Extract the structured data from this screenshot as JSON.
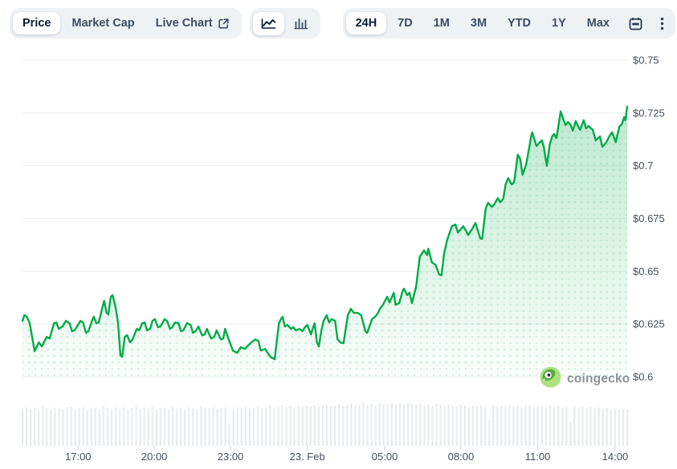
{
  "toolbar": {
    "left_tabs": [
      {
        "label": "Price",
        "selected": true
      },
      {
        "label": "Market Cap",
        "selected": false
      },
      {
        "label": "Live Chart",
        "selected": false,
        "external_icon": "external-link"
      }
    ],
    "chart_type_buttons": [
      {
        "icon": "line-chart",
        "selected": true
      },
      {
        "icon": "bar-chart",
        "selected": false
      }
    ],
    "range_buttons": [
      {
        "label": "24H",
        "selected": true
      },
      {
        "label": "7D",
        "selected": false
      },
      {
        "label": "1M",
        "selected": false
      },
      {
        "label": "3M",
        "selected": false
      },
      {
        "label": "YTD",
        "selected": false
      },
      {
        "label": "1Y",
        "selected": false
      },
      {
        "label": "Max",
        "selected": false
      }
    ],
    "calendar_icon": "calendar",
    "more_icon": "kebab-menu"
  },
  "watermark": {
    "label": "coingecko"
  },
  "chart_data": {
    "type": "area",
    "title": "",
    "currency": "USD",
    "ylim": [
      0.6,
      0.75
    ],
    "grid": "horizontal",
    "yticks": [
      {
        "label": "$0.75",
        "value": 0.75
      },
      {
        "label": "$0.725",
        "value": 0.725
      },
      {
        "label": "$0.7",
        "value": 0.7
      },
      {
        "label": "$0.675",
        "value": 0.675
      },
      {
        "label": "$0.65",
        "value": 0.65
      },
      {
        "label": "$0.625",
        "value": 0.625
      },
      {
        "label": "$0.6",
        "value": 0.6
      }
    ],
    "xticks": [
      {
        "label": "17:00",
        "f": 0.092
      },
      {
        "label": "20:00",
        "f": 0.218
      },
      {
        "label": "23:00",
        "f": 0.344
      },
      {
        "label": "23. Feb",
        "f": 0.471
      },
      {
        "label": "05:00",
        "f": 0.599
      },
      {
        "label": "08:00",
        "f": 0.725
      },
      {
        "label": "11:00",
        "f": 0.852
      },
      {
        "label": "14:00",
        "f": 0.98
      }
    ],
    "colors": {
      "line": "#00ab47",
      "fill_top": "rgba(0,171,71,0.26)",
      "fill_bottom": "rgba(0,171,71,0.02)",
      "dot": "rgba(0,150,62,0.13)",
      "grid": "#eef0f3",
      "volume_bar": "#e8ebee",
      "tick": "#ccd2d9",
      "axis_text": "#46505e"
    },
    "series": [
      {
        "name": "Price",
        "points": [
          [
            0,
            0.6265
          ],
          [
            0.003,
            0.6292
          ],
          [
            0.007,
            0.6285
          ],
          [
            0.012,
            0.6254
          ],
          [
            0.02,
            0.6121
          ],
          [
            0.027,
            0.6163
          ],
          [
            0.032,
            0.6144
          ],
          [
            0.04,
            0.6189
          ],
          [
            0.045,
            0.6181
          ],
          [
            0.052,
            0.6254
          ],
          [
            0.056,
            0.6257
          ],
          [
            0.06,
            0.6227
          ],
          [
            0.066,
            0.6238
          ],
          [
            0.072,
            0.6265
          ],
          [
            0.078,
            0.6254
          ],
          [
            0.082,
            0.6216
          ],
          [
            0.086,
            0.622
          ],
          [
            0.096,
            0.6265
          ],
          [
            0.1,
            0.6257
          ],
          [
            0.105,
            0.6208
          ],
          [
            0.109,
            0.6216
          ],
          [
            0.116,
            0.6273
          ],
          [
            0.118,
            0.6285
          ],
          [
            0.122,
            0.6254
          ],
          [
            0.126,
            0.6257
          ],
          [
            0.131,
            0.6314
          ],
          [
            0.135,
            0.636
          ],
          [
            0.139,
            0.6303
          ],
          [
            0.142,
            0.6295
          ],
          [
            0.146,
            0.6379
          ],
          [
            0.149,
            0.6387
          ],
          [
            0.153,
            0.6341
          ],
          [
            0.155,
            0.6311
          ],
          [
            0.158,
            0.6254
          ],
          [
            0.162,
            0.6102
          ],
          [
            0.165,
            0.6094
          ],
          [
            0.169,
            0.6189
          ],
          [
            0.173,
            0.6197
          ],
          [
            0.178,
            0.6163
          ],
          [
            0.182,
            0.6177
          ],
          [
            0.189,
            0.6227
          ],
          [
            0.193,
            0.622
          ],
          [
            0.198,
            0.6254
          ],
          [
            0.202,
            0.6257
          ],
          [
            0.206,
            0.622
          ],
          [
            0.211,
            0.6227
          ],
          [
            0.215,
            0.6265
          ],
          [
            0.219,
            0.6273
          ],
          [
            0.224,
            0.6235
          ],
          [
            0.228,
            0.6238
          ],
          [
            0.235,
            0.6273
          ],
          [
            0.239,
            0.6265
          ],
          [
            0.244,
            0.6227
          ],
          [
            0.248,
            0.6235
          ],
          [
            0.252,
            0.6257
          ],
          [
            0.258,
            0.6254
          ],
          [
            0.262,
            0.6216
          ],
          [
            0.266,
            0.622
          ],
          [
            0.272,
            0.6254
          ],
          [
            0.278,
            0.6246
          ],
          [
            0.282,
            0.6208
          ],
          [
            0.286,
            0.6216
          ],
          [
            0.291,
            0.6238
          ],
          [
            0.297,
            0.6197
          ],
          [
            0.301,
            0.62
          ],
          [
            0.305,
            0.6227
          ],
          [
            0.312,
            0.6181
          ],
          [
            0.317,
            0.6189
          ],
          [
            0.321,
            0.622
          ],
          [
            0.328,
            0.6177
          ],
          [
            0.332,
            0.6181
          ],
          [
            0.335,
            0.6227
          ],
          [
            0.341,
            0.6177
          ],
          [
            0.348,
            0.6124
          ],
          [
            0.355,
            0.6113
          ],
          [
            0.361,
            0.614
          ],
          [
            0.368,
            0.6132
          ],
          [
            0.374,
            0.6151
          ],
          [
            0.378,
            0.6162
          ],
          [
            0.385,
            0.6177
          ],
          [
            0.39,
            0.617
          ],
          [
            0.394,
            0.6124
          ],
          [
            0.401,
            0.6132
          ],
          [
            0.41,
            0.6094
          ],
          [
            0.417,
            0.6083
          ],
          [
            0.424,
            0.6254
          ],
          [
            0.428,
            0.6276
          ],
          [
            0.43,
            0.6284
          ],
          [
            0.434,
            0.6238
          ],
          [
            0.438,
            0.6246
          ],
          [
            0.444,
            0.6227
          ],
          [
            0.448,
            0.6235
          ],
          [
            0.452,
            0.622
          ],
          [
            0.458,
            0.6227
          ],
          [
            0.463,
            0.6216
          ],
          [
            0.467,
            0.6235
          ],
          [
            0.471,
            0.6246
          ],
          [
            0.477,
            0.62
          ],
          [
            0.481,
            0.6238
          ],
          [
            0.483,
            0.6254
          ],
          [
            0.487,
            0.6162
          ],
          [
            0.49,
            0.6143
          ],
          [
            0.494,
            0.6216
          ],
          [
            0.498,
            0.6265
          ],
          [
            0.503,
            0.6292
          ],
          [
            0.507,
            0.6257
          ],
          [
            0.511,
            0.6273
          ],
          [
            0.517,
            0.6265
          ],
          [
            0.521,
            0.6177
          ],
          [
            0.526,
            0.6162
          ],
          [
            0.531,
            0.6159
          ],
          [
            0.538,
            0.6292
          ],
          [
            0.543,
            0.6322
          ],
          [
            0.548,
            0.6303
          ],
          [
            0.554,
            0.6303
          ],
          [
            0.56,
            0.6292
          ],
          [
            0.567,
            0.6216
          ],
          [
            0.57,
            0.6208
          ],
          [
            0.578,
            0.6273
          ],
          [
            0.583,
            0.6284
          ],
          [
            0.588,
            0.6303
          ],
          [
            0.591,
            0.6322
          ],
          [
            0.596,
            0.6341
          ],
          [
            0.603,
            0.6379
          ],
          [
            0.607,
            0.6352
          ],
          [
            0.614,
            0.6398
          ],
          [
            0.617,
            0.6341
          ],
          [
            0.623,
            0.6349
          ],
          [
            0.629,
            0.6409
          ],
          [
            0.631,
            0.6417
          ],
          [
            0.636,
            0.6387
          ],
          [
            0.64,
            0.6398
          ],
          [
            0.644,
            0.6349
          ],
          [
            0.651,
            0.6428
          ],
          [
            0.657,
            0.6569
          ],
          [
            0.664,
            0.6599
          ],
          [
            0.669,
            0.6577
          ],
          [
            0.671,
            0.6607
          ],
          [
            0.677,
            0.6542
          ],
          [
            0.683,
            0.6531
          ],
          [
            0.689,
            0.6485
          ],
          [
            0.693,
            0.6481
          ],
          [
            0.697,
            0.658
          ],
          [
            0.702,
            0.6645
          ],
          [
            0.71,
            0.6713
          ],
          [
            0.716,
            0.6721
          ],
          [
            0.72,
            0.6683
          ],
          [
            0.729,
            0.6713
          ],
          [
            0.737,
            0.6672
          ],
          [
            0.744,
            0.6702
          ],
          [
            0.749,
            0.6729
          ],
          [
            0.757,
            0.6656
          ],
          [
            0.76,
            0.6653
          ],
          [
            0.766,
            0.6797
          ],
          [
            0.77,
            0.6824
          ],
          [
            0.776,
            0.6805
          ],
          [
            0.78,
            0.6816
          ],
          [
            0.786,
            0.6846
          ],
          [
            0.79,
            0.6827
          ],
          [
            0.795,
            0.6843
          ],
          [
            0.799,
            0.6911
          ],
          [
            0.803,
            0.6941
          ],
          [
            0.809,
            0.6911
          ],
          [
            0.813,
            0.6922
          ],
          [
            0.819,
            0.7052
          ],
          [
            0.823,
            0.7033
          ],
          [
            0.827,
            0.6957
          ],
          [
            0.833,
            0.7006
          ],
          [
            0.842,
            0.715
          ],
          [
            0.843,
            0.7158
          ],
          [
            0.85,
            0.7093
          ],
          [
            0.855,
            0.7109
          ],
          [
            0.859,
            0.712
          ],
          [
            0.862,
            0.709
          ],
          [
            0.867,
            0.6999
          ],
          [
            0.872,
            0.7101
          ],
          [
            0.876,
            0.7139
          ],
          [
            0.879,
            0.715
          ],
          [
            0.883,
            0.7131
          ],
          [
            0.89,
            0.7257
          ],
          [
            0.895,
            0.7215
          ],
          [
            0.898,
            0.7192
          ],
          [
            0.902,
            0.7207
          ],
          [
            0.906,
            0.7196
          ],
          [
            0.91,
            0.7166
          ],
          [
            0.915,
            0.7211
          ],
          [
            0.919,
            0.7185
          ],
          [
            0.922,
            0.717
          ],
          [
            0.928,
            0.7215
          ],
          [
            0.932,
            0.7177
          ],
          [
            0.936,
            0.7188
          ],
          [
            0.943,
            0.717
          ],
          [
            0.948,
            0.712
          ],
          [
            0.955,
            0.7139
          ],
          [
            0.959,
            0.709
          ],
          [
            0.965,
            0.7109
          ],
          [
            0.972,
            0.7147
          ],
          [
            0.975,
            0.7158
          ],
          [
            0.981,
            0.7112
          ],
          [
            0.987,
            0.7185
          ],
          [
            0.991,
            0.7196
          ],
          [
            0.995,
            0.723
          ],
          [
            0.997,
            0.7215
          ],
          [
            1,
            0.728
          ]
        ]
      }
    ],
    "volume": [
      0.88,
      0.91,
      0.87,
      0.9,
      0.86,
      0.92,
      0.89,
      0.85,
      0.9,
      0.88,
      0.86,
      0.9,
      0.92,
      0.87,
      0.89,
      0.91,
      0.85,
      0.88,
      0.9,
      0.86,
      0.93,
      0.89,
      0.87,
      0.91,
      0.88,
      0.9,
      0.85,
      0.89,
      0.92,
      0.87,
      0.9,
      0.88,
      0.91,
      0.86,
      0.89,
      0.9,
      0.87,
      0.92,
      0.88,
      0.9,
      0.86,
      0.91,
      0.89,
      0.87,
      0.93,
      0.9,
      0.88,
      0.91,
      0.87,
      0.89,
      0.9,
      0.52,
      0.88,
      0.91,
      0.89,
      0.92,
      0.88,
      0.9,
      0.93,
      0.89,
      0.91,
      0.94,
      0.9,
      0.92,
      0.95,
      0.91,
      0.93,
      0.9,
      0.94,
      0.92,
      0.95,
      0.93,
      0.96,
      0.92,
      0.94,
      0.97,
      0.93,
      0.95,
      0.98,
      0.94,
      0.96,
      0.99,
      0.95,
      0.97,
      1.0,
      0.96,
      0.98,
      0.95,
      0.99,
      0.97,
      0.98,
      1.0,
      0.96,
      0.99,
      0.97,
      1.0,
      0.98,
      0.96,
      0.99,
      0.95,
      0.97,
      0.94,
      0.98,
      0.96,
      0.93,
      0.97,
      0.95,
      0.92,
      0.96,
      0.94,
      0.9,
      0.95,
      0.93,
      0.96,
      0.91,
      0.6,
      0.94,
      0.92,
      0.95,
      0.93,
      0.96,
      0.92,
      0.94,
      0.9,
      0.93,
      0.95,
      0.91,
      0.94,
      0.92,
      0.9,
      0.93,
      0.91,
      0.94,
      0.9,
      0.92,
      0.55,
      0.93,
      0.9,
      0.92,
      0.89,
      0.91,
      0.88,
      0.9,
      0.87,
      0.89,
      0.86,
      0.88,
      0.85,
      0.87,
      0.86
    ]
  }
}
